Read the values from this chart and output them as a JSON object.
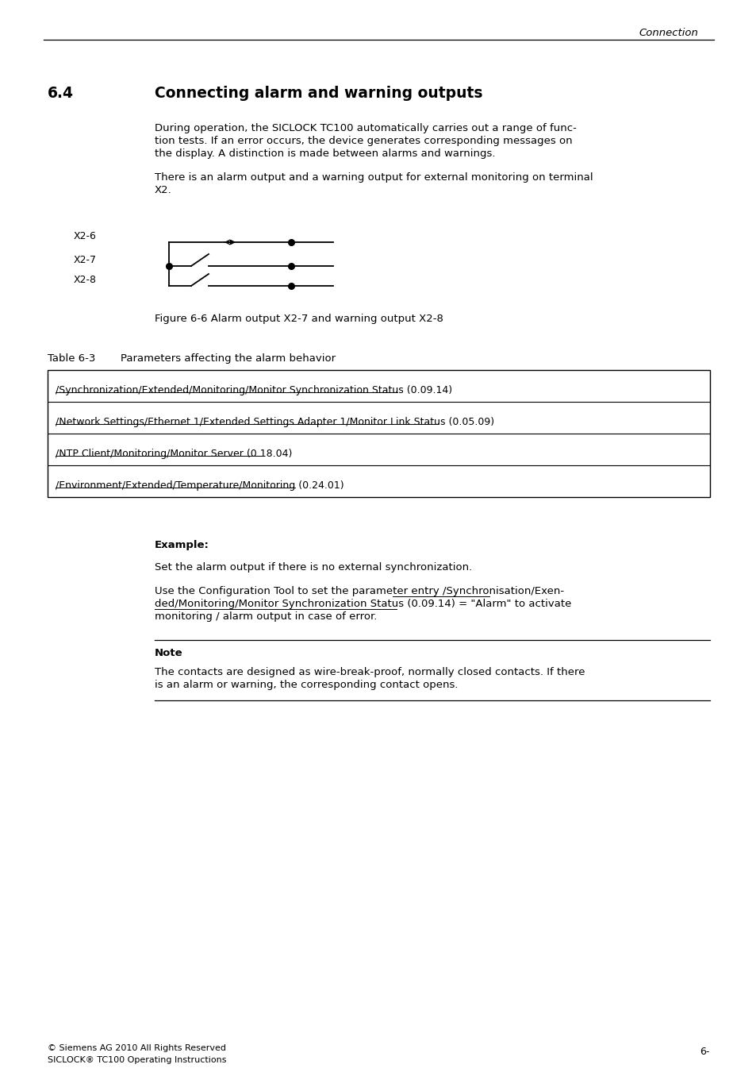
{
  "page_header_right": "Connection",
  "section_number": "6.4",
  "section_title": "Connecting alarm and warning outputs",
  "para1_line1": "During operation, the SICLOCK TC100 automatically carries out a range of func-",
  "para1_line2": "tion tests. If an error occurs, the device generates corresponding messages on",
  "para1_line3": "the display. A distinction is made between alarms and warnings.",
  "para2_line1": "There is an alarm output and a warning output for external monitoring on terminal",
  "para2_line2": "X2.",
  "x2_6": "X2-6",
  "x2_7": "X2-7",
  "x2_8": "X2-8",
  "figure_caption": "Figure 6-6 Alarm output X2-7 and warning output X2-8",
  "table_label": "Table 6-3",
  "table_desc": "Parameters affecting the alarm behavior",
  "table_rows": [
    "/Synchronization/Extended/Monitoring/Monitor Synchronization Status (0.09.14)",
    "/Network Settings/Ethernet 1/Extended Settings Adapter 1/Monitor Link Status (0.05.09)",
    "/NTP Client/Monitoring/Monitor Server (0.18.04)",
    "/Environment/Extended/Temperature/Monitoring (0.24.01)"
  ],
  "example_label": "Example:",
  "example_para1": "Set the alarm output if there is no external synchronization.",
  "example_para2_line1": "Use the Configuration Tool to set the parameter entry /Synchronisation/Exen-",
  "example_para2_line2": "ded/Monitoring/Monitor Synchronization Status (0.09.14) = \"Alarm\" to activate",
  "example_para2_line3": "monitoring / alarm output in case of error.",
  "example_link_end_line1": "Use the Configuration Tool to set the parameter entry ",
  "example_link_start_line1": "/Synchronisation/Exen-",
  "example_link_line2": "ded/Monitoring/Monitor Synchronization Status (0.09.14)",
  "note_label": "Note",
  "note_line1": "The contacts are designed as wire-break-proof, normally closed contacts. If there",
  "note_line2": "is an alarm or warning, the corresponding contact opens.",
  "footer_left1": "© Siemens AG 2010 All Rights Reserved",
  "footer_left2": "SICLOCK® TC100 Operating Instructions",
  "footer_right": "6-",
  "bg_color": "#ffffff",
  "text_color": "#000000"
}
